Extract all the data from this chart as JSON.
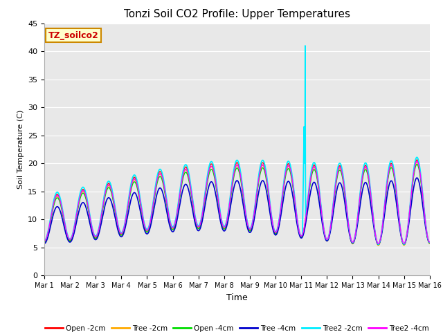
{
  "title": "Tonzi Soil CO2 Profile: Upper Temperatures",
  "xlabel": "Time",
  "ylabel": "Soil Temperature (C)",
  "watermark": "TZ_soilco2",
  "ylim": [
    0,
    45
  ],
  "xlim": [
    0,
    15
  ],
  "xtick_labels": [
    "Mar 1",
    "Mar 2",
    "Mar 3",
    "Mar 4",
    "Mar 5",
    "Mar 6",
    "Mar 7",
    "Mar 8",
    "Mar 9",
    "Mar 10",
    "Mar 11",
    "Mar 12",
    "Mar 13",
    "Mar 14",
    "Mar 15",
    "Mar 16"
  ],
  "legend": [
    {
      "label": "Open -2cm",
      "color": "#ff0000"
    },
    {
      "label": "Tree -2cm",
      "color": "#ffaa00"
    },
    {
      "label": "Open -4cm",
      "color": "#00dd00"
    },
    {
      "label": "Tree -4cm",
      "color": "#0000cc"
    },
    {
      "label": "Tree2 -2cm",
      "color": "#00eeff"
    },
    {
      "label": "Tree2 -4cm",
      "color": "#ff00ff"
    }
  ],
  "bg_color": "#e8e8e8",
  "title_fontsize": 11
}
